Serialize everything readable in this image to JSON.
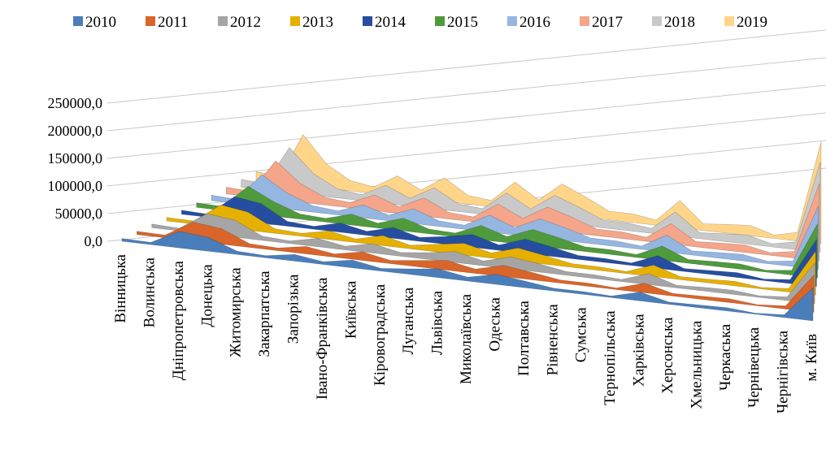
{
  "chart_data": {
    "type": "area3d",
    "categories": [
      "Вінницька",
      "Волинська",
      "Дніпропетровська",
      "Донецька",
      "Житомирська",
      "Закарпатська",
      "Запорізька",
      "Івано-Франківська",
      "Київська",
      "Кіровоградська",
      "Луганська",
      "Львівська",
      "Миколаївська",
      "Одеська",
      "Полтавська",
      "Рівненська",
      "Сумська",
      "Тернопільська",
      "Харківська",
      "Херсонська",
      "Хмельницька",
      "Черкаська",
      "Чернівецька",
      "Чернігівська",
      "м. Київ"
    ],
    "ylim": [
      0,
      250000
    ],
    "yticks": [
      {
        "value": 0,
        "label": "0,0"
      },
      {
        "value": 50000,
        "label": "50000,0"
      },
      {
        "value": 100000,
        "label": "100000,0"
      },
      {
        "value": 150000,
        "label": "150000,0"
      },
      {
        "value": 200000,
        "label": "200000,0"
      },
      {
        "value": 250000,
        "label": "250000,0"
      }
    ],
    "grid": true,
    "legend": "top",
    "series": [
      {
        "name": "2010",
        "color": "#4a7ebb",
        "values": [
          5000,
          4000,
          30000,
          25000,
          6000,
          4000,
          12000,
          5000,
          14000,
          5000,
          10000,
          16000,
          7000,
          18000,
          12000,
          5000,
          5000,
          3000,
          16000,
          4000,
          5000,
          6000,
          2000,
          5000,
          60000
        ]
      },
      {
        "name": "2011",
        "color": "#d9652a",
        "values": [
          6000,
          5000,
          35000,
          29000,
          7000,
          5000,
          14000,
          6000,
          16000,
          6000,
          12000,
          18000,
          8000,
          21000,
          14000,
          6000,
          6000,
          3000,
          18000,
          5000,
          6000,
          7000,
          2000,
          6000,
          69000
        ]
      },
      {
        "name": "2012",
        "color": "#a5a5a5",
        "values": [
          7000,
          5000,
          39000,
          33000,
          8000,
          5000,
          16000,
          7000,
          18000,
          7000,
          13000,
          21000,
          9000,
          23000,
          16000,
          7000,
          7000,
          4000,
          21000,
          5000,
          7000,
          8000,
          3000,
          7000,
          78000
        ]
      },
      {
        "name": "2013",
        "color": "#e6b000",
        "values": [
          7000,
          6000,
          44000,
          36000,
          9000,
          6000,
          17000,
          7000,
          20000,
          7000,
          15000,
          23000,
          10000,
          26000,
          17000,
          7000,
          7000,
          4000,
          23000,
          6000,
          7000,
          9000,
          3000,
          7000,
          87000
        ]
      },
      {
        "name": "2014",
        "color": "#264ea0",
        "values": [
          8000,
          6000,
          48000,
          40000,
          10000,
          6000,
          19000,
          8000,
          22000,
          8000,
          16000,
          26000,
          11000,
          29000,
          19000,
          8000,
          8000,
          5000,
          26000,
          6000,
          8000,
          10000,
          3000,
          8000,
          96000
        ]
      },
      {
        "name": "2015",
        "color": "#4f9a3c",
        "values": [
          10000,
          8000,
          57000,
          30000,
          11000,
          8000,
          23000,
          10000,
          27000,
          10000,
          8000,
          30000,
          13000,
          34000,
          23000,
          10000,
          10000,
          6000,
          30000,
          8000,
          10000,
          11000,
          4000,
          10000,
          114000
        ]
      },
      {
        "name": "2016",
        "color": "#95b6e0",
        "values": [
          12000,
          9000,
          69000,
          35000,
          14000,
          9000,
          28000,
          12000,
          32000,
          12000,
          9000,
          37000,
          16000,
          41000,
          28000,
          12000,
          12000,
          7000,
          37000,
          9000,
          12000,
          14000,
          5000,
          12000,
          138000
        ]
      },
      {
        "name": "2017",
        "color": "#f4a58a",
        "values": [
          15000,
          12000,
          87000,
          42000,
          17000,
          12000,
          35000,
          15000,
          41000,
          15000,
          11000,
          46000,
          20000,
          52000,
          35000,
          15000,
          15000,
          9000,
          46000,
          12000,
          15000,
          17000,
          6000,
          15000,
          174000
        ]
      },
      {
        "name": "2018",
        "color": "#c9c9c9",
        "values": [
          18000,
          14000,
          105000,
          50000,
          21000,
          14000,
          42000,
          18000,
          49000,
          18000,
          13000,
          56000,
          25000,
          63000,
          42000,
          18000,
          18000,
          11000,
          56000,
          14000,
          18000,
          21000,
          7000,
          18000,
          210000
        ]
      },
      {
        "name": "2019",
        "color": "#ffd58a",
        "values": [
          21000,
          16000,
          123000,
          58000,
          25000,
          16000,
          49000,
          21000,
          57000,
          21000,
          15000,
          66000,
          29000,
          74000,
          49000,
          21000,
          21000,
          12000,
          66000,
          16000,
          21000,
          25000,
          8000,
          21000,
          246000
        ]
      }
    ]
  }
}
